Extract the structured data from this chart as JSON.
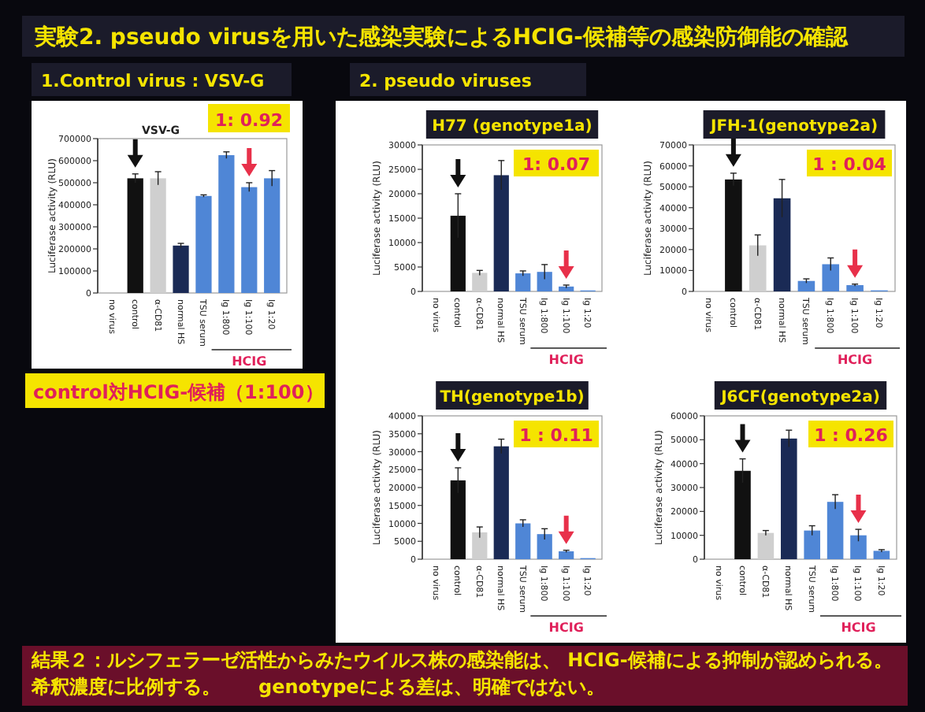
{
  "chart_data": [
    {
      "type": "other",
      "title": "実験2. pseudo virusを用いた感染実験によるHCIG-候補等の感染防御能の確認",
      "annotations": [
        "1.Control virus : VSV-G",
        "2. pseudo viruses",
        "control対HCIG-候補（1:100）",
        "結果２：ルシフェラーゼ活性からみたウイルス株の感染能は、 HCIG-候補による抑制が認められる。希釈濃度に比例する。　　genotypeによる差は、明確ではない。"
      ]
    },
    {
      "type": "bar",
      "title": "VSV-G",
      "ylabel": "Luciferase activity (RLU)",
      "categories": [
        "no virus",
        "control",
        "α-CD81",
        "normal HS",
        "TSU serum",
        "Ig 1:800",
        "Ig 1:100",
        "Ig 1:20"
      ],
      "values": [
        0,
        520000,
        520000,
        215000,
        440000,
        625000,
        480000,
        520000
      ],
      "errors": [
        null,
        20000,
        30000,
        10000,
        5000,
        15000,
        20000,
        35000
      ],
      "colors": [
        "#111111",
        "#111111",
        "#cfcfcf",
        "#1a2a55",
        "#4f86d6",
        "#4f86d6",
        "#4f86d6",
        "#4f86d6"
      ],
      "ylim": [
        0,
        700000
      ],
      "yticks": [
        0,
        100000,
        200000,
        300000,
        400000,
        500000,
        600000,
        700000
      ],
      "annotations": [
        "1: 0.92",
        "HCIG"
      ]
    },
    {
      "type": "bar",
      "title": "H77 (genotype1a)",
      "ylabel": "Luciferase activity (RLU)",
      "categories": [
        "no virus",
        "control",
        "α-CD81",
        "normal HS",
        "TSU serum",
        "Ig 1:800",
        "Ig 1:100",
        "Ig 1:20"
      ],
      "values": [
        0,
        15500,
        3800,
        23800,
        3700,
        4000,
        1000,
        200
      ],
      "errors": [
        null,
        4500,
        500,
        3000,
        500,
        1500,
        300,
        null
      ],
      "colors": [
        "#111111",
        "#111111",
        "#cfcfcf",
        "#1a2a55",
        "#4f86d6",
        "#4f86d6",
        "#4f86d6",
        "#4f86d6"
      ],
      "ylim": [
        0,
        30000
      ],
      "yticks": [
        0,
        5000,
        10000,
        15000,
        20000,
        25000,
        30000
      ],
      "annotations": [
        "1: 0.07",
        "HCIG"
      ]
    },
    {
      "type": "bar",
      "title": "JFH-1(genotype2a)",
      "ylabel": "Luciferase activity (RLU)",
      "categories": [
        "no virus",
        "control",
        "α-CD81",
        "normal HS",
        "TSU serum",
        "Ig 1:800",
        "Ig 1:100",
        "Ig 1:20"
      ],
      "values": [
        0,
        53500,
        22000,
        44500,
        5000,
        13000,
        3000,
        500
      ],
      "errors": [
        null,
        3000,
        5000,
        9000,
        1000,
        3000,
        500,
        null
      ],
      "colors": [
        "#111111",
        "#111111",
        "#cfcfcf",
        "#1a2a55",
        "#4f86d6",
        "#4f86d6",
        "#4f86d6",
        "#4f86d6"
      ],
      "ylim": [
        0,
        70000
      ],
      "yticks": [
        0,
        10000,
        20000,
        30000,
        40000,
        50000,
        60000,
        70000
      ],
      "annotations": [
        "1 : 0.04",
        "HCIG"
      ]
    },
    {
      "type": "bar",
      "title": "TH(genotype1b)",
      "ylabel": "Luciferase activity (RLU)",
      "categories": [
        "no virus",
        "control",
        "α-CD81",
        "normal HS",
        "TSU serum",
        "Ig 1:800",
        "Ig 1:100",
        "Ig 1:20"
      ],
      "values": [
        0,
        22000,
        7500,
        31500,
        10000,
        7000,
        2200,
        300
      ],
      "errors": [
        null,
        3500,
        1500,
        2000,
        1000,
        1500,
        300,
        null
      ],
      "colors": [
        "#111111",
        "#111111",
        "#cfcfcf",
        "#1a2a55",
        "#4f86d6",
        "#4f86d6",
        "#4f86d6",
        "#4f86d6"
      ],
      "ylim": [
        0,
        40000
      ],
      "yticks": [
        0,
        5000,
        10000,
        15000,
        20000,
        25000,
        30000,
        35000,
        40000
      ],
      "annotations": [
        "1 : 0.11",
        "HCIG"
      ]
    },
    {
      "type": "bar",
      "title": "J6CF(genotype2a)",
      "ylabel": "Luciferase activity (RLU)",
      "categories": [
        "no virus",
        "control",
        "α-CD81",
        "normal HS",
        "TSU serum",
        "Ig 1:800",
        "Ig 1:100",
        "Ig 1:20"
      ],
      "values": [
        0,
        37000,
        11000,
        50500,
        12000,
        24000,
        10000,
        3500
      ],
      "errors": [
        null,
        5000,
        1000,
        3500,
        2000,
        3000,
        2500,
        500
      ],
      "colors": [
        "#111111",
        "#111111",
        "#cfcfcf",
        "#1a2a55",
        "#4f86d6",
        "#4f86d6",
        "#4f86d6",
        "#4f86d6"
      ],
      "ylim": [
        0,
        60000
      ],
      "yticks": [
        0,
        10000,
        20000,
        30000,
        40000,
        50000,
        60000
      ],
      "annotations": [
        "1 : 0.26",
        "HCIG"
      ]
    }
  ]
}
